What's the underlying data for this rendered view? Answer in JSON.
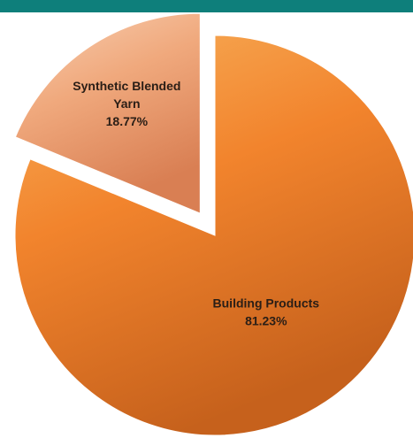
{
  "colors": {
    "header_band": "#0e7f7b",
    "background": "#ffffff"
  },
  "chart_data": {
    "type": "pie",
    "title": "",
    "start_angle_deg": 0,
    "direction": "clockwise",
    "slices": [
      {
        "label_lines": [
          "Building Products"
        ],
        "value_label": "81.23%",
        "value": 81.23,
        "exploded": false,
        "color_light": "#f7b15c",
        "color": "#f2842d",
        "color_dark": "#c6611c"
      },
      {
        "label_lines": [
          "Synthetic Blended",
          "Yarn"
        ],
        "value_label": "18.77%",
        "value": 18.77,
        "exploded": true,
        "color_light": "#f8cfb2",
        "color": "#f0a97d",
        "color_dark": "#d97f53"
      }
    ]
  }
}
